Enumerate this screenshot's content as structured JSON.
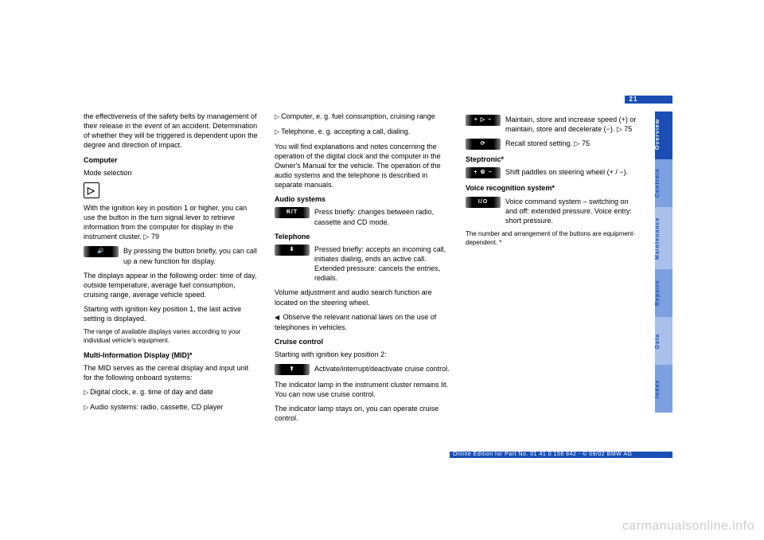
{
  "page_number": "21",
  "tabs": {
    "overview": "Overview",
    "controls": "Controls",
    "maintenance": "Maintenance",
    "repairs": "Repairs",
    "data": "Data",
    "index": "Index"
  },
  "col1": {
    "p1": "the effectiveness of the safety belts by management of their release in the event of an accident. Determination of whether they will be triggered is dependent upon the degree and direction of impact.",
    "h1": "Computer",
    "p2": "Mode selection",
    "sq_icon": "▷",
    "p3": "With the ignition key in position 1 or higher, you can use the button in the turn signal lever to retrieve information from the computer for display in the instrument cluster. ▷ 79",
    "btn1_icon": "🔊",
    "btn1_txt": "By pressing the button briefly, you can call up a new function for display.",
    "p4": "The displays appear in the following order: time of day, outside temperature, average fuel consumption, cruising range, average vehicle speed.",
    "p5": "Starting with ignition key position 1, the last active setting is displayed.",
    "p6": "The range of available displays varies according to your individual vehicle's equipment.",
    "h2": "Multi-Information Display (MID)*",
    "p7": "The MID serves as the central display and input unit for the following onboard systems:",
    "li1": "Digital clock, e. g. time of day and date",
    "li2": "Audio systems: radio, cassette, CD player"
  },
  "col2": {
    "li1": "Computer, e. g. fuel consumption, cruising range",
    "li2": "Telephone, e. g. accepting a call, dialing.",
    "p1": "You will find explanations and notes concerning the operation of the digital clock and the computer in the Owner's Manual for the vehicle. The operation of the audio systems and the telephone is described in separate manuals.",
    "h1": "Audio systems",
    "btn_rt": "R/T",
    "btn_rt_txt": "Press briefly: changes between radio, cassette and CD mode.",
    "h2": "Telephone",
    "btn_down": "⬇",
    "btn_down_txt": "Pressed briefly: accepts an incoming call, initiates dialing, ends an active call. Extended pressure: cancels the entries, redials.",
    "p2": "Volume adjustment and audio search function are located on the steering wheel.",
    "tri": "◀",
    "p3": "Observe the relevant national laws on the use of telephones in vehicles.",
    "h3": "Cruise control",
    "p4": "Starting with ignition key position 2:",
    "btn_up": "⬆",
    "btn_up_txt": "Activate/interrupt/deactivate cruise control.",
    "p5": "The indicator lamp in the instrument cluster remains lit. You can now use cruise control.",
    "p6": "The indicator lamp stays on, you can operate cruise control."
  },
  "col3": {
    "btn1": "+ ▷ −",
    "btn1_txt": "Maintain, store and increase speed (+) or maintain, store and decelerate (−). ▷ 75",
    "btn2": "⟳",
    "btn2_txt": "Recall stored setting. ▷ 75",
    "h1": "Steptronic*",
    "btn3": "+ ⚙ −",
    "btn3_txt": "Shift paddles on steering wheel (+ / −).",
    "h2": "Voice recognition system*",
    "btn4": "I/O",
    "btn4_txt": "Voice command system – switching on and off: extended pressure. Voice entry: short pressure.",
    "p1": "The number and arrangement of the buttons are equipment-dependent. *"
  },
  "footer": "Online Edition for Part No. 01 41 0 156 842 - © 09/02 BMW AG",
  "watermark": "carmanualsonline.info",
  "colors": {
    "brand": "#1a4eb5",
    "tab_light": "#a8c0ea",
    "tab_mid": "#7da0e0",
    "btn_bg": "#000000",
    "text": "#000000"
  }
}
